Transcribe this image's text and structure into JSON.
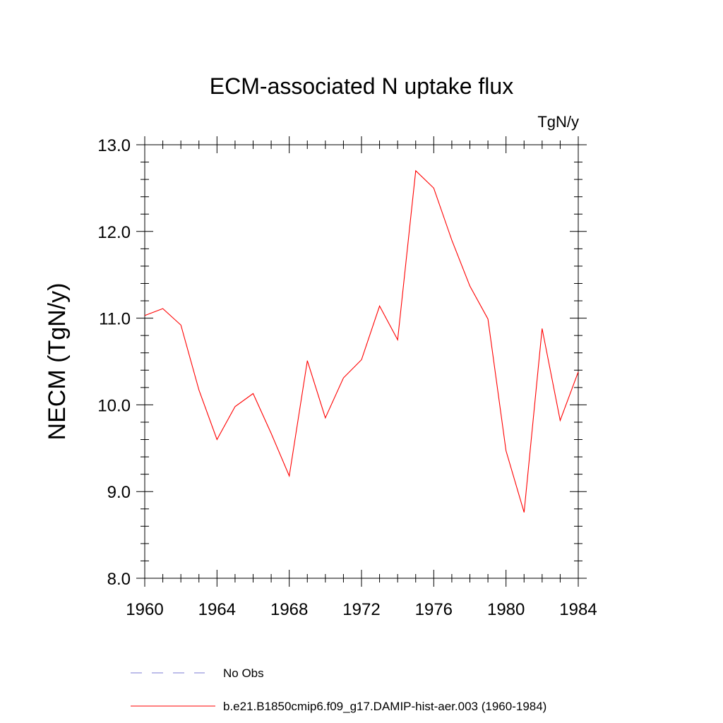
{
  "chart_data": {
    "type": "line",
    "title": "ECM-associated N uptake flux",
    "units_label": "TgN/y",
    "xlabel": "",
    "ylabel": "NECM  (TgN/y)",
    "xlim": [
      1960,
      1984
    ],
    "ylim": [
      8.0,
      13.0
    ],
    "x_ticks": [
      1960,
      1964,
      1968,
      1972,
      1976,
      1980,
      1984
    ],
    "x_tick_labels": [
      "1960",
      "1964",
      "1968",
      "1972",
      "1976",
      "1980",
      "1984"
    ],
    "y_ticks": [
      8.0,
      9.0,
      10.0,
      11.0,
      12.0,
      13.0
    ],
    "y_tick_labels": [
      "8.0",
      "9.0",
      "10.0",
      "11.0",
      "12.0",
      "13.0"
    ],
    "grid": false,
    "legend_placement": "bottom",
    "x": [
      1960,
      1961,
      1962,
      1963,
      1964,
      1965,
      1966,
      1967,
      1968,
      1969,
      1970,
      1971,
      1972,
      1973,
      1974,
      1975,
      1976,
      1977,
      1978,
      1979,
      1980,
      1981,
      1982,
      1983,
      1984
    ],
    "series": [
      {
        "name": "b.e21.B1850cmip6.f09_g17.DAMIP-hist-aer.003 (1960-1984)",
        "color": "#ff0000",
        "style": "solid",
        "values": [
          11.03,
          11.11,
          10.92,
          10.17,
          9.6,
          9.98,
          10.13,
          9.67,
          9.18,
          10.51,
          9.85,
          10.31,
          10.52,
          11.14,
          10.75,
          12.7,
          12.5,
          11.9,
          11.37,
          10.99,
          9.47,
          8.76,
          10.88,
          9.82,
          10.38
        ]
      }
    ],
    "legend": [
      {
        "label": "No Obs",
        "color": "#7b7bd6",
        "style": "dashed"
      },
      {
        "label": "b.e21.B1850cmip6.f09_g17.DAMIP-hist-aer.003 (1960-1984)",
        "color": "#ff0000",
        "style": "solid"
      }
    ]
  }
}
